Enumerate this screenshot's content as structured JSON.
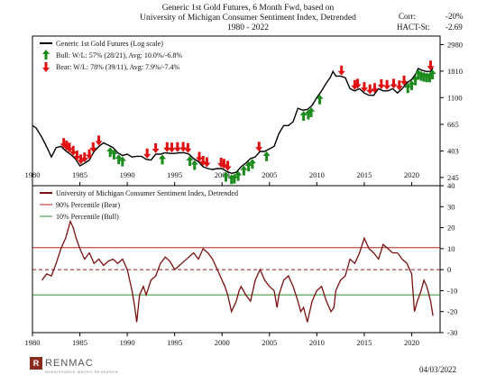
{
  "header": {
    "title_line1": "Generic 1st Gold Futures, 6 Month Fwd, based on",
    "title_line2": "University of Michigan Consumer Sentiment Index, Detrended",
    "title_line3": "1980 - 2022",
    "corr_label": "Corr:",
    "corr_value": "-20%",
    "hact_label": "HACT-St:",
    "hact_value": "-2.69"
  },
  "footer": {
    "brand": "RENMAC",
    "brand_sub": "RENAISSANCE MACRO RESEARCH",
    "date": "04/03/2022"
  },
  "colors": {
    "gold_line": "#000000",
    "sentiment_line": "#7b1010",
    "bear_line": "#b22222",
    "bull_line": "#2e8b2e",
    "bull_arrow": "#1a8a1a",
    "bear_arrow": "#e01010",
    "zero_line": "#8b1a1a",
    "axis": "#000000"
  },
  "chart_data": [
    {
      "type": "line",
      "title": "Generic 1st Gold Futures, 6 Month Fwd, based on University of Michigan Consumer Sentiment Index, Detrended",
      "log_scale": true,
      "ylim": [
        210,
        3500
      ],
      "y_ticks": [
        245,
        403,
        665,
        1100,
        1810,
        2980
      ],
      "xlim": [
        1980,
        2023
      ],
      "x_ticks": [
        1980,
        1985,
        1990,
        1995,
        2000,
        2005,
        2010,
        2015,
        2020
      ],
      "legend_position": "top-left",
      "legend": [
        {
          "label": "Generic 1st Gold Futures (Log scale)",
          "marker": "line"
        },
        {
          "label": "Bull:  W/L: 57% (28/21), Avg: 10.0%/-6.8%",
          "marker": "green-up-arrow"
        },
        {
          "label": "Bear:  W/L: 78% (39/11), Avg: 7.9%/-7.4%",
          "marker": "red-down-arrow"
        }
      ],
      "series": [
        {
          "name": "Generic 1st Gold Futures (Log scale)",
          "x": [
            1980.0,
            1980.4,
            1981.0,
            1981.6,
            1982.0,
            1982.5,
            1983.0,
            1983.5,
            1984.0,
            1984.5,
            1985.0,
            1985.5,
            1986.0,
            1986.5,
            1987.0,
            1987.5,
            1988.0,
            1988.5,
            1989.0,
            1989.5,
            1990.0,
            1990.5,
            1991.0,
            1991.5,
            1992.0,
            1992.5,
            1993.0,
            1993.5,
            1994.0,
            1994.5,
            1995.0,
            1995.5,
            1996.0,
            1996.5,
            1997.0,
            1997.5,
            1998.0,
            1998.5,
            1999.0,
            1999.5,
            2000.0,
            2000.5,
            2001.0,
            2001.5,
            2002.0,
            2002.5,
            2003.0,
            2003.5,
            2004.0,
            2004.5,
            2005.0,
            2005.5,
            2006.0,
            2006.5,
            2007.0,
            2007.5,
            2008.0,
            2008.5,
            2009.0,
            2009.5,
            2010.0,
            2010.5,
            2011.0,
            2011.4,
            2011.7,
            2012.0,
            2012.5,
            2013.0,
            2013.5,
            2014.0,
            2014.5,
            2015.0,
            2015.5,
            2016.0,
            2016.5,
            2017.0,
            2017.5,
            2018.0,
            2018.5,
            2019.0,
            2019.5,
            2020.0,
            2020.4,
            2020.7,
            2021.0,
            2021.5,
            2022.0,
            2022.25
          ],
          "y": [
            650,
            620,
            520,
            420,
            360,
            430,
            440,
            405,
            380,
            350,
            305,
            320,
            340,
            400,
            440,
            470,
            450,
            430,
            390,
            370,
            380,
            360,
            365,
            365,
            345,
            340,
            380,
            380,
            390,
            385,
            385,
            390,
            390,
            380,
            350,
            330,
            300,
            290,
            285,
            290,
            290,
            275,
            265,
            270,
            300,
            320,
            350,
            360,
            400,
            400,
            420,
            440,
            560,
            650,
            650,
            700,
            900,
            870,
            880,
            950,
            1100,
            1250,
            1450,
            1600,
            1800,
            1650,
            1650,
            1600,
            1300,
            1250,
            1300,
            1200,
            1150,
            1150,
            1300,
            1250,
            1250,
            1300,
            1200,
            1300,
            1450,
            1550,
            1700,
            1900,
            1850,
            1800,
            1800,
            1930
          ]
        }
      ],
      "bull_signals_x": [
        1988.2,
        1988.6,
        1989.1,
        1989.5,
        1993.7,
        1996.6,
        1997.1,
        2000.4,
        2001.0,
        2001.3,
        2001.7,
        2002.3,
        2002.8,
        2003.2,
        2004.7,
        2008.6,
        2009.1,
        2009.4,
        2010.3,
        2019.6,
        2020.0,
        2020.4,
        2020.7,
        2021.0,
        2021.3,
        2021.6,
        2021.9,
        2022.2
      ],
      "bear_signals_x": [
        1983.3,
        1983.6,
        1983.9,
        1984.3,
        1984.7,
        1985.1,
        1985.5,
        1986.0,
        1986.4,
        1987.0,
        1992.1,
        1993.0,
        1994.2,
        1994.7,
        1995.3,
        1995.9,
        1996.4,
        1997.6,
        1998.0,
        1998.4,
        1999.9,
        2000.2,
        2000.6,
        2003.9,
        2012.6,
        2014.0,
        2014.3,
        2015.0,
        2015.6,
        2016.1,
        2016.8,
        2017.4,
        2018.1,
        2018.7,
        2019.2,
        2022.0
      ]
    },
    {
      "type": "line",
      "legend_position": "top-left",
      "ylim": [
        -30,
        40
      ],
      "y_ticks": [
        -30,
        -20,
        -10,
        0,
        10,
        20,
        30,
        40
      ],
      "xlim": [
        1980,
        2023
      ],
      "x_ticks": [
        1980,
        1985,
        1990,
        1995,
        2000,
        2005,
        2010,
        2015,
        2020
      ],
      "legend": [
        {
          "label": "University of Michigan Consumer Sentiment Index, Detrended"
        },
        {
          "label": "90% Percentile (Bear)"
        },
        {
          "label": "10% Percentile (Bull)"
        }
      ],
      "series": [
        {
          "name": "University of Michigan Consumer Sentiment Index, Detrended",
          "x": [
            1981.0,
            1981.5,
            1982.0,
            1982.5,
            1983.0,
            1983.5,
            1984.0,
            1984.3,
            1984.6,
            1985.0,
            1985.5,
            1986.0,
            1986.5,
            1987.0,
            1987.5,
            1988.0,
            1988.5,
            1989.0,
            1989.5,
            1990.0,
            1990.5,
            1990.8,
            1991.0,
            1991.3,
            1991.7,
            1992.0,
            1992.5,
            1993.0,
            1993.5,
            1994.0,
            1994.5,
            1995.0,
            1995.5,
            1996.0,
            1996.5,
            1997.0,
            1997.5,
            1998.0,
            1998.5,
            1999.0,
            1999.5,
            2000.0,
            2000.3,
            2000.6,
            2001.0,
            2001.5,
            2001.8,
            2002.0,
            2002.5,
            2003.0,
            2003.5,
            2004.0,
            2004.5,
            2005.0,
            2005.5,
            2005.8,
            2006.0,
            2006.5,
            2007.0,
            2007.5,
            2008.0,
            2008.3,
            2008.6,
            2009.0,
            2009.5,
            2010.0,
            2010.5,
            2011.0,
            2011.5,
            2011.8,
            2012.0,
            2012.5,
            2013.0,
            2013.5,
            2014.0,
            2014.5,
            2015.0,
            2015.5,
            2016.0,
            2016.5,
            2017.0,
            2017.5,
            2018.0,
            2018.5,
            2019.0,
            2019.5,
            2020.0,
            2020.3,
            2020.6,
            2021.0,
            2021.3,
            2021.6,
            2022.0,
            2022.25
          ],
          "y": [
            -5,
            -2,
            -3,
            3,
            10,
            15,
            23,
            20,
            15,
            10,
            5,
            8,
            3,
            5,
            2,
            4,
            5,
            3,
            5,
            0,
            -10,
            -18,
            -25,
            -12,
            -8,
            -12,
            -5,
            -3,
            3,
            6,
            4,
            0,
            2,
            4,
            6,
            8,
            5,
            10,
            8,
            5,
            0,
            -5,
            -8,
            -12,
            -20,
            -15,
            -10,
            -8,
            -12,
            -15,
            -5,
            0,
            -5,
            -8,
            -10,
            -18,
            -12,
            -5,
            -3,
            -8,
            -15,
            -20,
            -18,
            -25,
            -15,
            -10,
            -8,
            -15,
            -20,
            -18,
            -10,
            -5,
            -3,
            5,
            3,
            8,
            15,
            10,
            8,
            5,
            12,
            10,
            8,
            8,
            5,
            3,
            -2,
            -20,
            -15,
            -10,
            -5,
            -8,
            -15,
            -22
          ]
        },
        {
          "name": "90% Percentile (Bear)",
          "x": [
            1980,
            2023
          ],
          "y": [
            10.5,
            10.5
          ]
        },
        {
          "name": "10% Percentile (Bull)",
          "x": [
            1980,
            2023
          ],
          "y": [
            -12,
            -12
          ]
        }
      ]
    }
  ]
}
